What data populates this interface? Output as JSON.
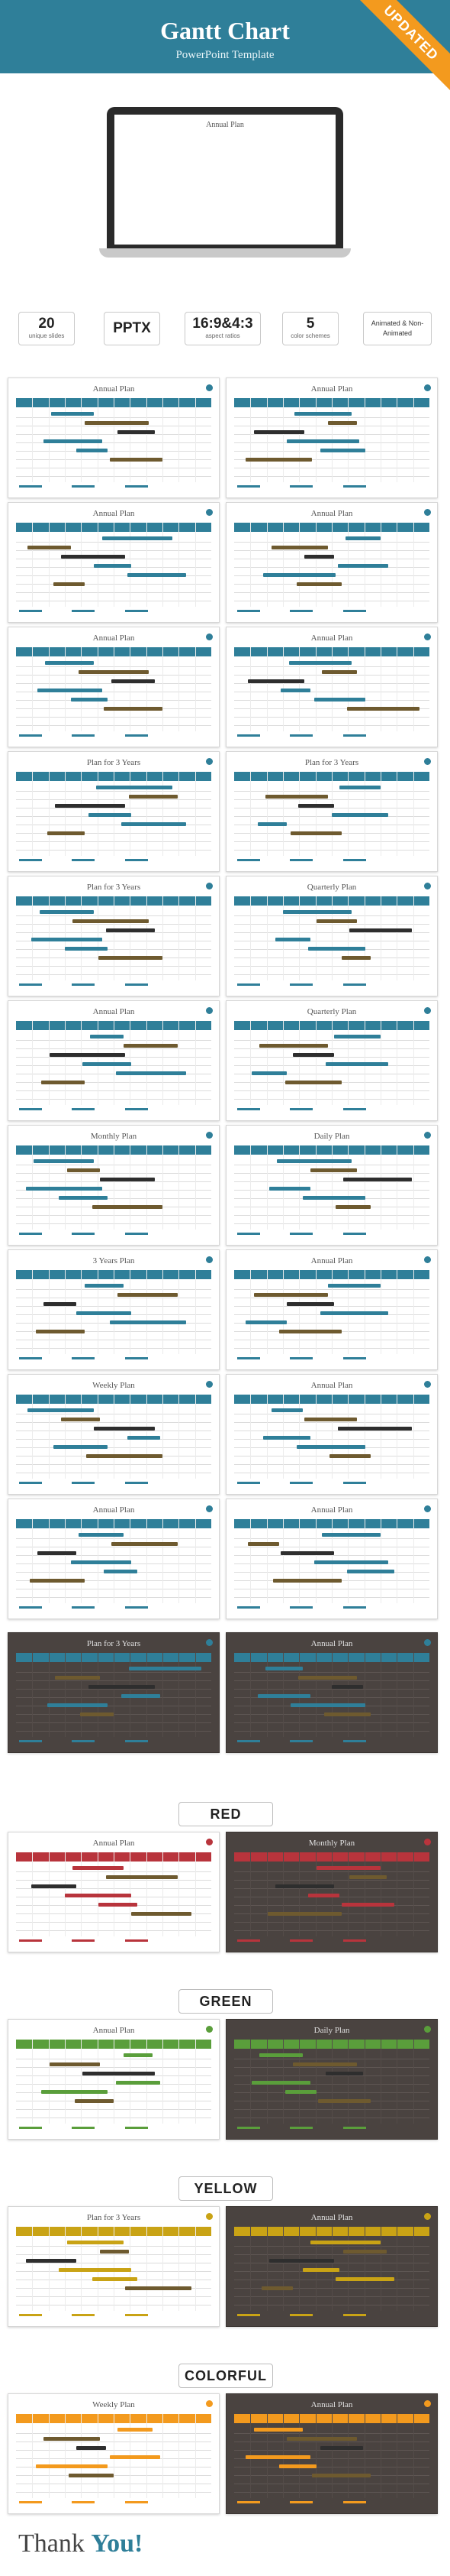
{
  "header": {
    "title": "Gantt Chart",
    "subtitle": "PowerPoint Template",
    "ribbon": "UPDATED"
  },
  "hero": {
    "slide_title": "Annual Plan"
  },
  "features": [
    {
      "value": "20",
      "label": "unique slides"
    },
    {
      "value": "PPTX",
      "label": ""
    },
    {
      "value": "16:9&4:3",
      "label": "aspect ratios"
    },
    {
      "value": "5",
      "label": "color schemes"
    },
    {
      "value": "Animated & Non-Animated",
      "label": ""
    }
  ],
  "colors": {
    "blue": "#2f7f99",
    "red": "#b8343c",
    "green": "#5a9e3b",
    "yellow": "#c9a315",
    "dark": "#4a4340",
    "olive": "#6e5a2f",
    "orange": "#f39a1e"
  },
  "slides": [
    {
      "title": "Annual Plan",
      "accent": "blue"
    },
    {
      "title": "Annual Plan",
      "accent": "blue"
    },
    {
      "title": "Annual Plan",
      "accent": "blue"
    },
    {
      "title": "Annual Plan",
      "accent": "blue"
    },
    {
      "title": "Annual Plan",
      "accent": "blue"
    },
    {
      "title": "Annual Plan",
      "accent": "blue"
    },
    {
      "title": "Plan for 3 Years",
      "accent": "blue"
    },
    {
      "title": "Plan for 3 Years",
      "accent": "blue"
    },
    {
      "title": "Plan for 3 Years",
      "accent": "blue"
    },
    {
      "title": "Quarterly Plan",
      "accent": "blue"
    },
    {
      "title": "Annual Plan",
      "accent": "blue"
    },
    {
      "title": "Quarterly Plan",
      "accent": "blue"
    },
    {
      "title": "Monthly Plan",
      "accent": "blue"
    },
    {
      "title": "Daily Plan",
      "accent": "blue"
    },
    {
      "title": "3 Years Plan",
      "accent": "blue"
    },
    {
      "title": "Annual Plan",
      "accent": "blue"
    },
    {
      "title": "Weekly Plan",
      "accent": "blue"
    },
    {
      "title": "Annual Plan",
      "accent": "blue"
    },
    {
      "title": "Annual Plan",
      "accent": "blue"
    },
    {
      "title": "Annual Plan",
      "accent": "blue"
    },
    {
      "title": "Plan for 3 Years",
      "accent": "dark"
    },
    {
      "title": "Annual Plan",
      "accent": "dark"
    },
    {
      "title": "Annual Plan",
      "accent": "red"
    },
    {
      "title": "Monthly Plan",
      "accent": "red-dark"
    },
    {
      "title": "Annual Plan",
      "accent": "green"
    },
    {
      "title": "Daily Plan",
      "accent": "green-dark"
    },
    {
      "title": "Plan for 3 Years",
      "accent": "yellow"
    },
    {
      "title": "Annual Plan",
      "accent": "yellow-dark"
    },
    {
      "title": "Weekly Plan",
      "accent": "colorful"
    },
    {
      "title": "Annual Plan",
      "accent": "colorful-dark"
    }
  ],
  "sections": {
    "red": "RED",
    "green": "GREEN",
    "yellow": "YELLOW",
    "colorful": "COLORFUL"
  },
  "footer": {
    "thanks_prefix": "Thank",
    "thanks_accent": "You!"
  }
}
